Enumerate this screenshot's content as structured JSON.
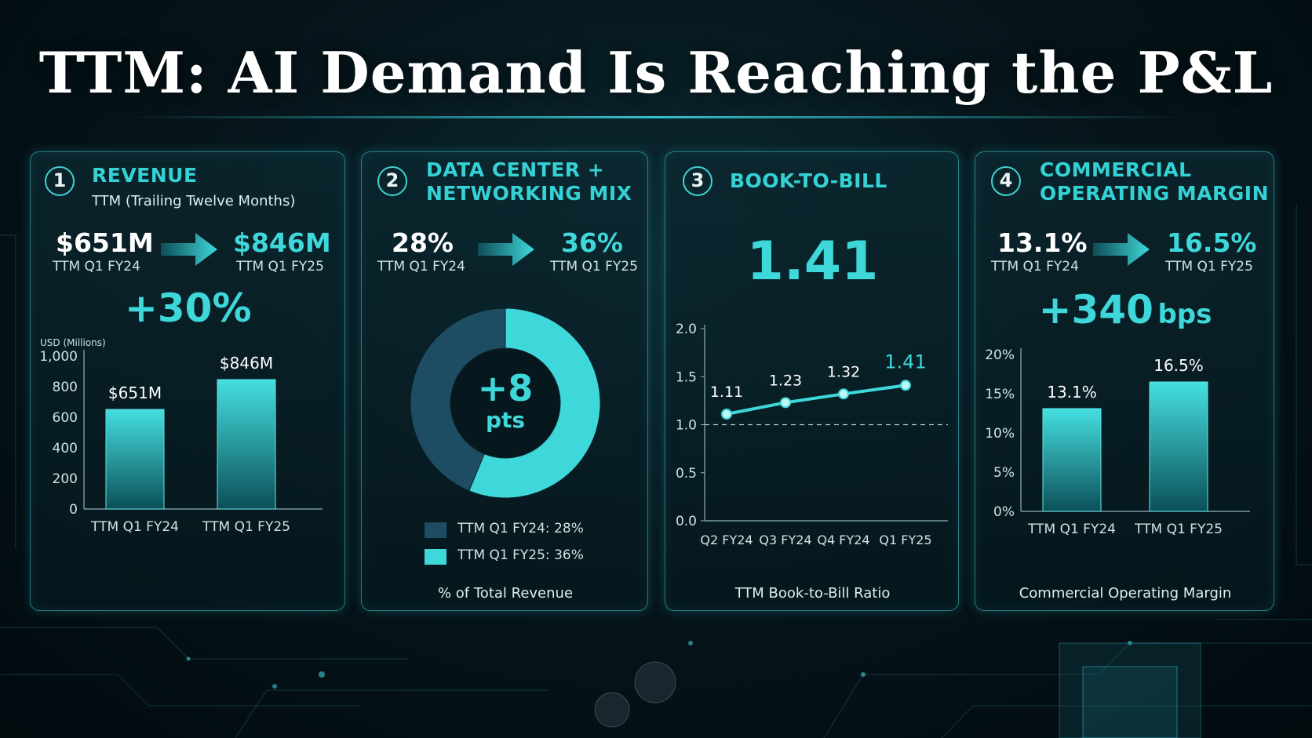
{
  "title": "TTM: AI Demand Is Reaching the P&L",
  "colors": {
    "accent": "#3fd8da",
    "dark_segment": "#1e4d63",
    "panel_border": "#46c8d2"
  },
  "panels": [
    {
      "number": "1",
      "heading_lines": [
        "REVENUE"
      ],
      "subtitle": "TTM (Trailing Twelve Months)",
      "from_value": "$651M",
      "from_label": "TTM Q1 FY24",
      "to_value": "$846M",
      "to_label": "TTM Q1 FY25",
      "delta": "+30%",
      "caption": ""
    },
    {
      "number": "2",
      "heading_lines": [
        "DATA CENTER +",
        "NETWORKING MIX"
      ],
      "from_value": "28%",
      "from_label": "TTM Q1 FY24",
      "to_value": "36%",
      "to_label": "TTM Q1 FY25",
      "center_value": "+8",
      "center_unit": "pts",
      "legend": [
        "TTM Q1 FY24: 28%",
        "TTM Q1 FY25: 36%"
      ],
      "caption": "% of Total Revenue"
    },
    {
      "number": "3",
      "heading_lines": [
        "BOOK-TO-BILL"
      ],
      "headline_value": "1.41",
      "caption": "TTM Book-to-Bill Ratio"
    },
    {
      "number": "4",
      "heading_lines": [
        "COMMERCIAL",
        "OPERATING MARGIN"
      ],
      "from_value": "13.1%",
      "from_label": "TTM Q1 FY24",
      "to_value": "16.5%",
      "to_label": "TTM Q1 FY25",
      "delta_value": "+340",
      "delta_unit": "bps",
      "caption": "Commercial Operating Margin"
    }
  ],
  "chart_data": [
    {
      "type": "bar",
      "ylabel": "USD (Millions)",
      "categories": [
        "TTM Q1 FY24",
        "TTM Q1 FY25"
      ],
      "values": [
        651,
        846
      ],
      "data_labels": [
        "$651M",
        "$846M"
      ],
      "ylim": [
        0,
        1000
      ],
      "yticks": [
        0,
        200,
        400,
        600,
        800,
        1000
      ],
      "ytick_labels": [
        "0",
        "200",
        "400",
        "600",
        "800",
        "1,000"
      ]
    },
    {
      "type": "pie",
      "categories": [
        "TTM Q1 FY24",
        "TTM Q1 FY25"
      ],
      "values": [
        28,
        36
      ],
      "donut": true
    },
    {
      "type": "line",
      "categories": [
        "Q2 FY24",
        "Q3 FY24",
        "Q4 FY24",
        "Q1 FY25"
      ],
      "values": [
        1.11,
        1.23,
        1.32,
        1.41
      ],
      "data_labels": [
        "1.11",
        "1.23",
        "1.32",
        "1.41"
      ],
      "ylim": [
        0,
        2
      ],
      "yticks": [
        0,
        0.5,
        1,
        1.5,
        2
      ],
      "ytick_labels": [
        "0.0",
        "0.5",
        "1.0",
        "1.5",
        "2.0"
      ],
      "reference_line": 1.0
    },
    {
      "type": "bar",
      "categories": [
        "TTM Q1 FY24",
        "TTM Q1 FY25"
      ],
      "values": [
        13.1,
        16.5
      ],
      "data_labels": [
        "13.1%",
        "16.5%"
      ],
      "ylim": [
        0,
        20
      ],
      "yticks": [
        0,
        5,
        10,
        15,
        20
      ],
      "ytick_labels": [
        "0%",
        "5%",
        "10%",
        "15%",
        "20%"
      ]
    }
  ]
}
